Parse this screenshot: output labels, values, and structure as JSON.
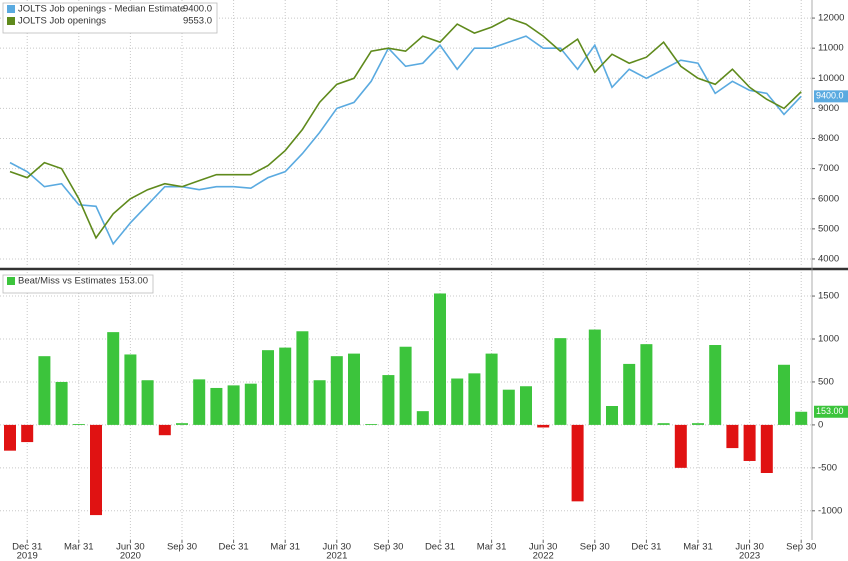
{
  "chart_data": [
    {
      "type": "line",
      "ylim": [
        3700,
        12600
      ],
      "yticks": [
        4000,
        5000,
        6000,
        7000,
        8000,
        9000,
        10000,
        11000,
        12000
      ],
      "grid": true,
      "series": [
        {
          "name": "JOLTS Job openings - Median Estimate",
          "last_label": "9400.0",
          "badge": true,
          "color": "#5aaae0",
          "values": [
            7200,
            6900,
            6400,
            6500,
            5800,
            5750,
            4500,
            5200,
            5800,
            6400,
            6400,
            6300,
            6400,
            6400,
            6350,
            6700,
            6900,
            7500,
            8200,
            9000,
            9200,
            9900,
            11000,
            10400,
            10500,
            11100,
            10300,
            11000,
            11000,
            11200,
            11400,
            11000,
            11000,
            10300,
            11100,
            9700,
            10300,
            10000,
            10300,
            10600,
            10500,
            9500,
            9900,
            9600,
            9500,
            8800,
            9400
          ]
        },
        {
          "name": "JOLTS Job openings",
          "last_label": "9553.0",
          "badge": false,
          "color": "#5f8a1c",
          "values": [
            6900,
            6700,
            7200,
            7000,
            6000,
            4700,
            5500,
            6000,
            6300,
            6500,
            6400,
            6600,
            6800,
            6800,
            6800,
            7100,
            7600,
            8300,
            9200,
            9800,
            10000,
            10900,
            11000,
            10900,
            11400,
            11200,
            11800,
            11500,
            11700,
            12000,
            11800,
            11400,
            10900,
            11300,
            10200,
            10800,
            10500,
            10700,
            11200,
            10400,
            10000,
            9800,
            10300,
            9700,
            9300,
            9000,
            9553
          ]
        }
      ]
    },
    {
      "type": "bar",
      "ylim": [
        -1340,
        1780
      ],
      "yticks": [
        -1000,
        -500,
        0,
        500,
        1000,
        1500
      ],
      "grid": true,
      "categories": [
        null,
        "Dec 31",
        null,
        null,
        "Mar 31",
        null,
        null,
        "Jun 30",
        null,
        null,
        "Sep 30",
        null,
        null,
        "Dec 31",
        null,
        null,
        "Mar 31",
        null,
        null,
        "Jun 30",
        null,
        null,
        "Sep 30",
        null,
        null,
        "Dec 31",
        null,
        null,
        "Mar 31",
        null,
        null,
        "Jun 30",
        null,
        null,
        "Sep 30",
        null,
        null,
        "Dec 31",
        null,
        null,
        "Mar 31",
        null,
        null,
        "Jun 30",
        null,
        null,
        "Sep 30"
      ],
      "years": [
        null,
        "2019",
        null,
        null,
        null,
        null,
        null,
        "2020",
        null,
        null,
        null,
        null,
        null,
        null,
        null,
        null,
        null,
        null,
        null,
        "2021",
        null,
        null,
        null,
        null,
        null,
        null,
        null,
        null,
        null,
        null,
        null,
        "2022",
        null,
        null,
        null,
        null,
        null,
        null,
        null,
        null,
        null,
        null,
        null,
        "2023",
        null,
        null,
        null
      ],
      "series": [
        {
          "name": "Beat/Miss vs Estimates",
          "last_label": "153.00",
          "badge": true,
          "color": "#3cc43c",
          "negative_color": "#e01212",
          "values": [
            -300,
            -200,
            800,
            500,
            10,
            -1050,
            1080,
            820,
            520,
            -120,
            20,
            530,
            430,
            460,
            480,
            870,
            900,
            1090,
            520,
            800,
            830,
            10,
            580,
            910,
            160,
            1530,
            540,
            600,
            830,
            410,
            450,
            -30,
            1010,
            -890,
            1110,
            220,
            710,
            940,
            20,
            -500,
            20,
            930,
            -270,
            -420,
            -560,
            700,
            153
          ]
        }
      ]
    }
  ]
}
